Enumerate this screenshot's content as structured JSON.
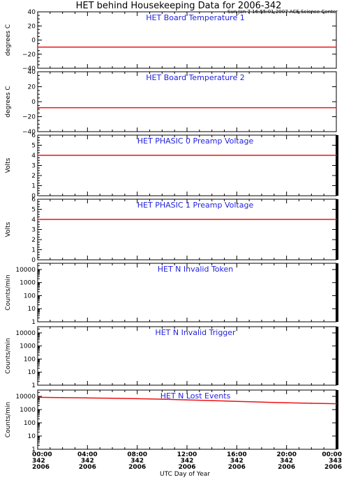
{
  "title": "HET behind Housekeeping Data for 2006-342",
  "timestamp": "Sun Jan  7 16:55:01 2007 ACE Science Center",
  "x_axis_label": "UTC Day of Year",
  "x_ticks": [
    {
      "time": "00:00",
      "day": "342",
      "year": "2006"
    },
    {
      "time": "04:00",
      "day": "342",
      "year": "2006"
    },
    {
      "time": "08:00",
      "day": "342",
      "year": "2006"
    },
    {
      "time": "12:00",
      "day": "342",
      "year": "2006"
    },
    {
      "time": "16:00",
      "day": "342",
      "year": "2006"
    },
    {
      "time": "20:00",
      "day": "342",
      "year": "2006"
    },
    {
      "time": "00:00",
      "day": "343",
      "year": "2006"
    }
  ],
  "colors": {
    "title_blue": "#2222dd",
    "data_red": "#ee1111"
  },
  "chart_data": [
    {
      "type": "line",
      "title": "HET Board Temperature 1",
      "ylabel": "degrees C",
      "yscale": "linear",
      "ylim": [
        -40,
        40
      ],
      "yticks": [
        "40",
        "20",
        "0",
        "−20",
        "−40"
      ],
      "ytick_values": [
        40,
        20,
        0,
        -20,
        -40
      ],
      "xlim": [
        0,
        24
      ],
      "series": [
        {
          "x": [
            0,
            24
          ],
          "y": [
            -10,
            -10
          ]
        }
      ]
    },
    {
      "type": "line",
      "title": "HET Board Temperature 2",
      "ylabel": "degrees C",
      "yscale": "linear",
      "ylim": [
        -40,
        40
      ],
      "yticks": [
        "40",
        "20",
        "0",
        "−20",
        "−40"
      ],
      "ytick_values": [
        40,
        20,
        0,
        -20,
        -40
      ],
      "xlim": [
        0,
        24
      ],
      "series": [
        {
          "x": [
            0,
            24
          ],
          "y": [
            -8,
            -8
          ]
        }
      ]
    },
    {
      "type": "line",
      "title": "HET PHASIC 0 Preamp Voltage",
      "ylabel": "Volts",
      "yscale": "linear",
      "ylim": [
        0,
        6
      ],
      "yticks": [
        "6",
        "5",
        "4",
        "3",
        "2",
        "1",
        "0"
      ],
      "ytick_values": [
        6,
        5,
        4,
        3,
        2,
        1,
        0
      ],
      "xlim": [
        0,
        24
      ],
      "series": [
        {
          "x": [
            0,
            24
          ],
          "y": [
            4.0,
            4.0
          ]
        }
      ]
    },
    {
      "type": "line",
      "title": "HET PHASIC 1 Preamp Voltage",
      "ylabel": "Volts",
      "yscale": "linear",
      "ylim": [
        0,
        6
      ],
      "yticks": [
        "6",
        "5",
        "4",
        "3",
        "2",
        "1",
        "0"
      ],
      "ytick_values": [
        6,
        5,
        4,
        3,
        2,
        1,
        0
      ],
      "xlim": [
        0,
        24
      ],
      "series": [
        {
          "x": [
            0,
            24
          ],
          "y": [
            4.0,
            4.0
          ]
        }
      ]
    },
    {
      "type": "line",
      "title": "HET N Invalid Token",
      "ylabel": "Counts/min",
      "yscale": "log",
      "ylim": [
        1,
        30000
      ],
      "yticks": [
        "10000",
        "1000",
        "100",
        "10",
        "1"
      ],
      "ytick_values": [
        10000,
        1000,
        100,
        10,
        1
      ],
      "xlim": [
        0,
        24
      ],
      "series": []
    },
    {
      "type": "line",
      "title": "HET N Invalid Trigger",
      "ylabel": "Counts/min",
      "yscale": "log",
      "ylim": [
        1,
        30000
      ],
      "yticks": [
        "10000",
        "1000",
        "100",
        "10",
        "1"
      ],
      "ytick_values": [
        10000,
        1000,
        100,
        10,
        1
      ],
      "xlim": [
        0,
        24
      ],
      "series": []
    },
    {
      "type": "line",
      "title": "HET N Lost Events",
      "ylabel": "Counts/min",
      "yscale": "log",
      "ylim": [
        1,
        30000
      ],
      "yticks": [
        "10000",
        "1000",
        "100",
        "10",
        "1"
      ],
      "ytick_values": [
        10000,
        1000,
        100,
        10,
        1
      ],
      "xlim": [
        0,
        24
      ],
      "series": [
        {
          "x": [
            0,
            2,
            4,
            6,
            8,
            10,
            12,
            14,
            16,
            18,
            20,
            22,
            24
          ],
          "y": [
            8500,
            8000,
            7600,
            7200,
            6700,
            6100,
            5400,
            4800,
            4200,
            3700,
            3300,
            3000,
            2800
          ]
        }
      ]
    }
  ]
}
